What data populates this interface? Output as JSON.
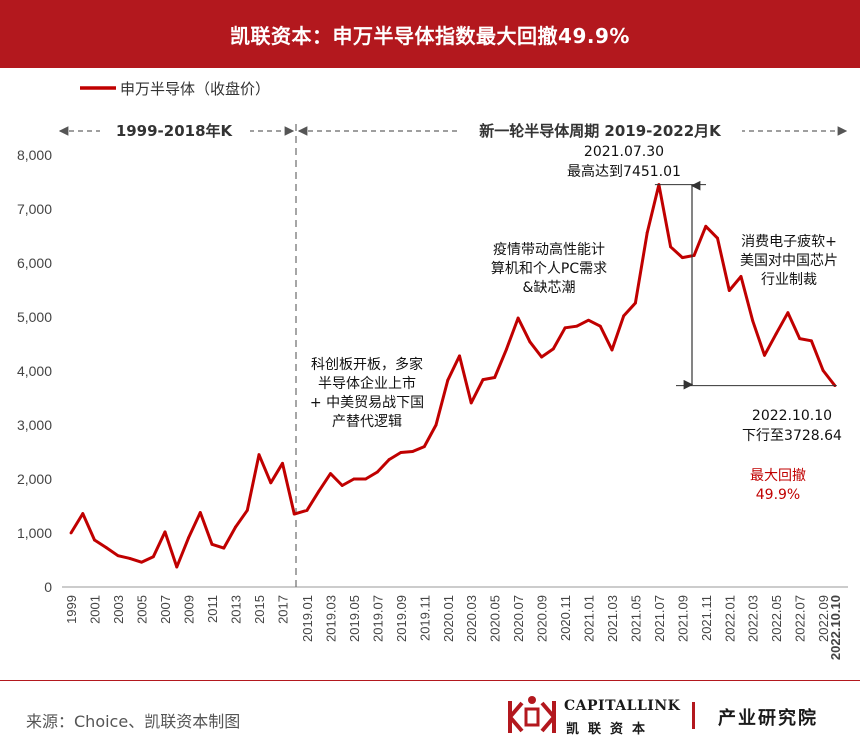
{
  "title": "凯联资本：申万半导体指数最大回撤49.9%",
  "footer": {
    "source": "来源：Choice、凯联资本制图",
    "logo_en": "CAPITALLINK",
    "logo_cn": "凯联资本",
    "dept": "产业研究院"
  },
  "colors": {
    "series": "#c00000",
    "header": "#b3181e",
    "drawdown_text": "#c00000"
  },
  "chart_data": {
    "type": "line",
    "legend": {
      "label": "申万半导体（收盘价）",
      "position": "top-left"
    },
    "ylim": [
      0,
      8000
    ],
    "yticks": [
      0,
      1000,
      2000,
      3000,
      4000,
      5000,
      6000,
      7000,
      8000
    ],
    "grid": false,
    "periods": [
      {
        "label": "1999-2018年K",
        "from": "1999",
        "to": "2018.12"
      },
      {
        "label": "新一轮半导体周期 2019-2022月K",
        "from": "2019.01",
        "to": "2022.10.10"
      }
    ],
    "annual_series": {
      "x": [
        "1999",
        "2000",
        "2001",
        "2002",
        "2003",
        "2004",
        "2005",
        "2006",
        "2007",
        "2008",
        "2009",
        "2010",
        "2011",
        "2012",
        "2013",
        "2014",
        "2015",
        "2016",
        "2017",
        "2018"
      ],
      "values": [
        1000,
        1360,
        870,
        730,
        580,
        530,
        460,
        560,
        1020,
        370,
        910,
        1380,
        790,
        720,
        1110,
        1420,
        2450,
        1930,
        2290,
        1350
      ]
    },
    "annual_tick_labels": [
      "1999",
      "2001",
      "2003",
      "2005",
      "2007",
      "2009",
      "2011",
      "2013",
      "2015",
      "2017"
    ],
    "monthly_series": {
      "x": [
        "2019.01",
        "2019.02",
        "2019.03",
        "2019.04",
        "2019.05",
        "2019.06",
        "2019.07",
        "2019.08",
        "2019.09",
        "2019.10",
        "2019.11",
        "2019.12",
        "2020.01",
        "2020.02",
        "2020.03",
        "2020.04",
        "2020.05",
        "2020.06",
        "2020.07",
        "2020.08",
        "2020.09",
        "2020.10",
        "2020.11",
        "2020.12",
        "2021.01",
        "2021.02",
        "2021.03",
        "2021.04",
        "2021.05",
        "2021.06",
        "2021.07",
        "2021.08",
        "2021.09",
        "2021.10",
        "2021.11",
        "2021.12",
        "2022.01",
        "2022.02",
        "2022.03",
        "2022.04",
        "2022.05",
        "2022.06",
        "2022.07",
        "2022.08",
        "2022.09",
        "2022.10.10"
      ],
      "values": [
        1420,
        1770,
        2100,
        1880,
        2000,
        2000,
        2130,
        2360,
        2490,
        2510,
        2600,
        3000,
        3830,
        4280,
        3410,
        3840,
        3880,
        4400,
        4980,
        4540,
        4260,
        4410,
        4800,
        4830,
        4940,
        4830,
        4390,
        5020,
        5260,
        6560,
        7451.01,
        6300,
        6100,
        6140,
        6680,
        6460,
        5490,
        5750,
        4930,
        4290,
        4690,
        5080,
        4600,
        4560,
        4010,
        3728.64
      ]
    },
    "monthly_tick_labels": [
      "2019.01",
      "2019.03",
      "2019.05",
      "2019.07",
      "2019.09",
      "2019.11",
      "2020.01",
      "2020.03",
      "2020.05",
      "2020.07",
      "2020.09",
      "2020.11",
      "2021.01",
      "2021.03",
      "2021.05",
      "2021.07",
      "2021.09",
      "2021.11",
      "2022.01",
      "2022.03",
      "2022.05",
      "2022.07",
      "2022.09",
      "2022.10.10"
    ],
    "annotations": {
      "peak": {
        "date": "2021.07.30",
        "text": "最高达到7451.01",
        "value": 7451.01
      },
      "trough": {
        "date": "2022.10.10",
        "text": "下行至3728.64",
        "value": 3728.64
      },
      "drawdown": {
        "line1": "最大回撤",
        "line2": "49.9%"
      },
      "note_2019": [
        "科创板开板，多家",
        "半导体企业上市",
        "+ 中美贸易战下国",
        "产替代逻辑"
      ],
      "note_2020": [
        "疫情带动高性能计",
        "算机和个人PC需求",
        "&缺芯潮"
      ],
      "note_2022": [
        "消费电子疲软+",
        "美国对中国芯片",
        "行业制裁"
      ]
    }
  }
}
